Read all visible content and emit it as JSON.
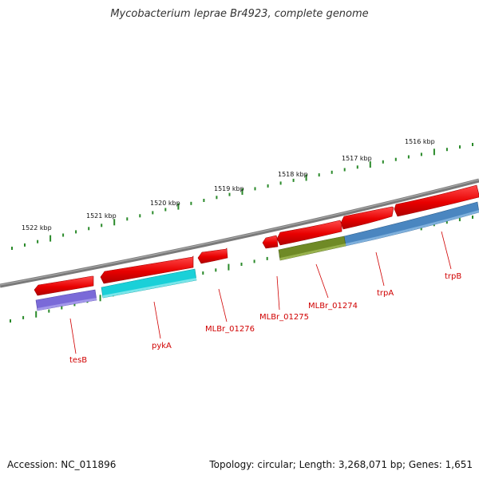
{
  "title": "Mycobacterium leprae Br4923, complete genome",
  "footer": {
    "accession": "Accession: NC_011896",
    "summary": "Topology: circular; Length: 3,268,071 bp; Genes: 1,651"
  },
  "colors": {
    "backbone": "#808080",
    "tick": "#2a8a2a",
    "gene": "#ee1111",
    "label": "#d00000",
    "cog_purple": "#7a6ad8",
    "cog_cyan": "#1ad0d8",
    "cog_olive": "#6f8a26",
    "cog_blue": "#4a86c0"
  },
  "kbp_ticks": [
    {
      "label": "1516 kbp"
    },
    {
      "label": "1517 kbp"
    },
    {
      "label": "1518 kbp"
    },
    {
      "label": "1519 kbp"
    },
    {
      "label": "1520 kbp"
    },
    {
      "label": "1521 kbp"
    },
    {
      "label": "1522 kbp"
    }
  ],
  "gene_labels": [
    {
      "name": "trpB"
    },
    {
      "name": "trpA"
    },
    {
      "name": "MLBr_01274"
    },
    {
      "name": "MLBr_01275"
    },
    {
      "name": "MLBr_01276"
    },
    {
      "name": "pykA"
    },
    {
      "name": "tesB"
    }
  ]
}
